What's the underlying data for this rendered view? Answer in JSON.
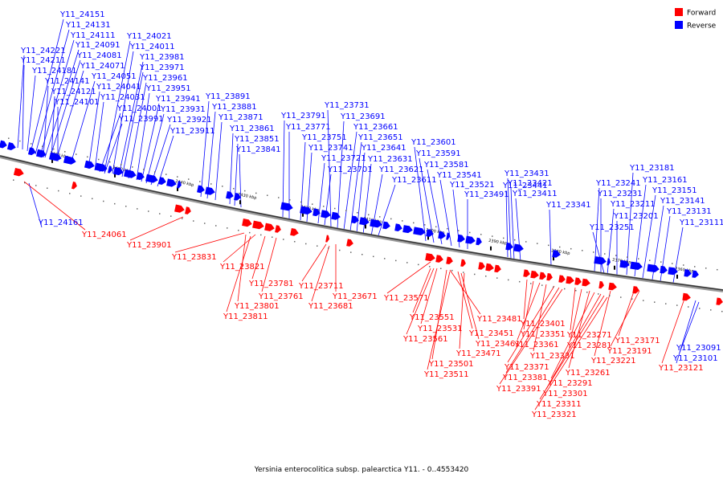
{
  "caption": "Yersinia enterocolitica subsp. palearctica Y11. - 0..4553420",
  "colors": {
    "forward": "#ff0000",
    "reverse": "#0000ff",
    "axis": "#888888"
  },
  "legend": [
    {
      "label": "Forward",
      "color": "#ff0000"
    },
    {
      "label": "Reverse",
      "color": "#0000ff"
    }
  ],
  "ticks": [
    "2460 kbp",
    "2450 kbp",
    "2440 kbp",
    "2430 kbp",
    "2420 kbp",
    "2410 kbp",
    "2400 kbp",
    "2390 kbp",
    "2380 kbp",
    "2370 kbp",
    "2360 kbp"
  ],
  "reverse_labels": [
    "Y11_24151",
    "Y11_24131",
    "Y11_24111",
    "Y11_24091",
    "Y11_24081",
    "Y11_24071",
    "Y11_24051",
    "Y11_24041",
    "Y11_24031",
    "Y11_24001",
    "Y11_23991",
    "Y11_24221",
    "Y11_24211",
    "Y11_24181",
    "Y11_24141",
    "Y11_24121",
    "Y11_24101",
    "Y11_24021",
    "Y11_24011",
    "Y11_23981",
    "Y11_23971",
    "Y11_23961",
    "Y11_23951",
    "Y11_23941",
    "Y11_23931",
    "Y11_23921",
    "Y11_23911",
    "Y11_23891",
    "Y11_23881",
    "Y11_23871",
    "Y11_23861",
    "Y11_23851",
    "Y11_23841",
    "Y11_23791",
    "Y11_23771",
    "Y11_23751",
    "Y11_23741",
    "Y11_23721",
    "Y11_23701",
    "Y11_23731",
    "Y11_23691",
    "Y11_23661",
    "Y11_23651",
    "Y11_23641",
    "Y11_23631",
    "Y11_23621",
    "Y11_23611",
    "Y11_23601",
    "Y11_23591",
    "Y11_23581",
    "Y11_23541",
    "Y11_23521",
    "Y11_23491",
    "Y11_23441",
    "Y11_23431",
    "Y11_23421",
    "Y11_23411",
    "Y11_23341",
    "Y11_23241",
    "Y11_23231",
    "Y11_23211",
    "Y11_23201",
    "Y11_23251",
    "Y11_23181",
    "Y11_23161",
    "Y11_23151",
    "Y11_23141",
    "Y11_23131",
    "Y11_23111",
    "Y11_24161",
    "Y11_23091",
    "Y11_23101"
  ],
  "forward_labels": [
    "Y11_24061",
    "Y11_23901",
    "Y11_23831",
    "Y11_23821",
    "Y11_23781",
    "Y11_23761",
    "Y11_23801",
    "Y11_23811",
    "Y11_23711",
    "Y11_23681",
    "Y11_23671",
    "Y11_23571",
    "Y11_23551",
    "Y11_23531",
    "Y11_23561",
    "Y11_23481",
    "Y11_23451",
    "Y11_23461",
    "Y11_23471",
    "Y11_23501",
    "Y11_23511",
    "Y11_23401",
    "Y11_23351",
    "Y11_23361",
    "Y11_23331",
    "Y11_23371",
    "Y11_23381",
    "Y11_23391",
    "Y11_23271",
    "Y11_23281",
    "Y11_23261",
    "Y11_23291",
    "Y11_23301",
    "Y11_23311",
    "Y11_23321",
    "Y11_23171",
    "Y11_23191",
    "Y11_23221",
    "Y11_23121"
  ]
}
